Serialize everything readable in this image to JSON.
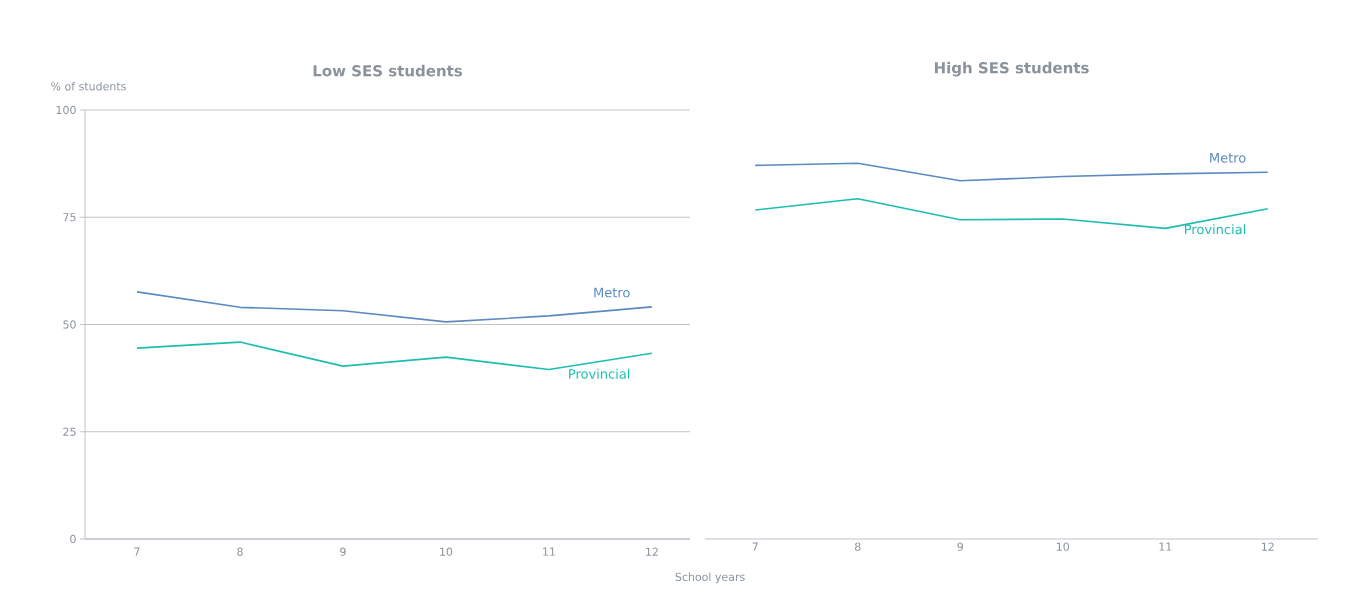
{
  "chart_data": [
    {
      "type": "line",
      "title": "Low SES students",
      "xlabel": "School years",
      "ylabel": "% of students",
      "categories": [
        "7",
        "8",
        "9",
        "10",
        "11",
        "12"
      ],
      "ylim": [
        0,
        100
      ],
      "yticks": [
        0,
        25,
        50,
        75,
        100
      ],
      "grid": "y",
      "series": [
        {
          "name": "Metro",
          "color": "#5b8ac0",
          "values": [
            57.6,
            54.0,
            53.2,
            50.6,
            52.0,
            54.1
          ]
        },
        {
          "name": "Provincial",
          "color": "#1dbdb0",
          "values": [
            44.5,
            45.9,
            40.3,
            42.4,
            39.5,
            43.3
          ]
        }
      ]
    },
    {
      "type": "line",
      "title": "High SES students",
      "categories": [
        "7",
        "8",
        "9",
        "10",
        "11",
        "12"
      ],
      "ylim": [
        0,
        100
      ],
      "yticks": [
        0,
        25,
        50,
        75,
        100
      ],
      "grid": "y",
      "tick_labels": "x",
      "series": [
        {
          "name": "Metro",
          "color": "#5b8ac0",
          "values": [
            87.1,
            87.6,
            83.5,
            84.5,
            85.1,
            85.5
          ]
        },
        {
          "name": "Provincial",
          "color": "#1dbdb0",
          "values": [
            76.7,
            79.3,
            74.4,
            74.6,
            72.4,
            77.0
          ]
        }
      ]
    }
  ]
}
